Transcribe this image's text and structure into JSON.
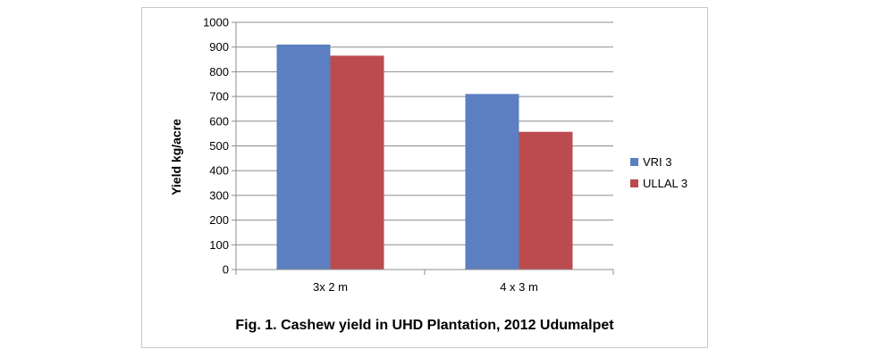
{
  "chart_data": {
    "type": "bar",
    "title": "Fig. 1.  Cashew yield in UHD Plantation, 2012 Udumalpet",
    "xlabel": "",
    "ylabel": "Yield  kg/acre",
    "categories": [
      "3x 2 m",
      "4 x 3 m"
    ],
    "series": [
      {
        "name": "VRI 3",
        "values": [
          910,
          710
        ],
        "color": "#5B7FC0"
      },
      {
        "name": "ULLAL 3",
        "values": [
          865,
          557
        ],
        "color": "#BC4B4E"
      }
    ],
    "ylim": [
      0,
      1000
    ],
    "yticks": [
      0,
      100,
      200,
      300,
      400,
      500,
      600,
      700,
      800,
      900,
      1000
    ],
    "grid": true,
    "legend": "right"
  }
}
